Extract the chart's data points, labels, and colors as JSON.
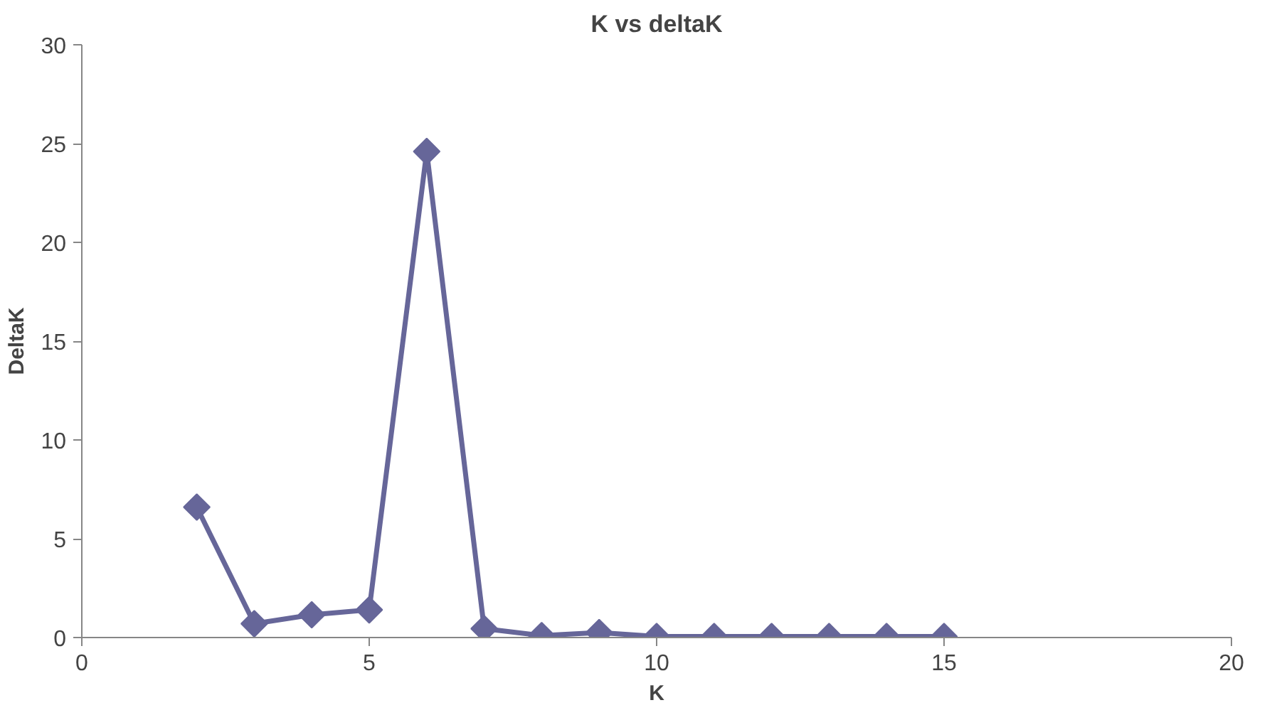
{
  "chart_data": {
    "type": "line",
    "title": "K vs deltaK",
    "xlabel": "K",
    "ylabel": "DeltaK",
    "x": [
      2,
      3,
      4,
      5,
      6,
      7,
      8,
      9,
      10,
      11,
      12,
      13,
      14,
      15
    ],
    "series": [
      {
        "color": "#666699",
        "values": [
          6.6,
          0.7,
          1.15,
          1.4,
          24.6,
          0.45,
          0.1,
          0.25,
          0.05,
          0.05,
          0.05,
          0.05,
          0.05,
          0.05
        ]
      }
    ],
    "xlim": [
      0,
      20
    ],
    "xticks": [
      0,
      5,
      10,
      15,
      20
    ],
    "ylim": [
      0,
      30
    ],
    "yticks": [
      0,
      5,
      10,
      15,
      20,
      25,
      30
    ],
    "grid": false,
    "marker": "diamond",
    "line_style": "solid"
  }
}
